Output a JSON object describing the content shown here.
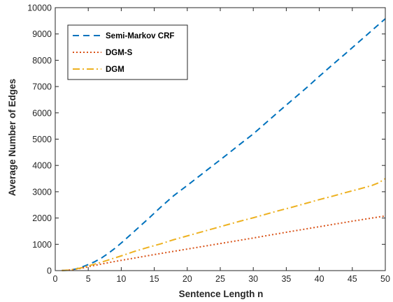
{
  "chart_data": {
    "type": "line",
    "title": "",
    "xlabel": "Sentence Length n",
    "ylabel": "Average Number of Edges",
    "xlim": [
      0,
      50
    ],
    "ylim": [
      0,
      10000
    ],
    "xticks": [
      0,
      5,
      10,
      15,
      20,
      25,
      30,
      35,
      40,
      45,
      50
    ],
    "yticks": [
      0,
      1000,
      2000,
      3000,
      4000,
      5000,
      6000,
      7000,
      8000,
      9000,
      10000
    ],
    "grid": false,
    "legend_position": "top-left",
    "series": [
      {
        "name": "Semi-Markov CRF",
        "color": "#0072BD",
        "dash": "dashed",
        "x": [
          1,
          2,
          3,
          4,
          5,
          6,
          7,
          8,
          9,
          10,
          12,
          14,
          16,
          18,
          20,
          22,
          24,
          26,
          28,
          30,
          32,
          34,
          36,
          38,
          40,
          42,
          44,
          46,
          48,
          50
        ],
        "y": [
          3,
          15,
          55,
          130,
          230,
          340,
          480,
          650,
          840,
          1050,
          1500,
          1950,
          2420,
          2860,
          3240,
          3630,
          4020,
          4410,
          4810,
          5200,
          5640,
          6080,
          6510,
          6940,
          7390,
          7830,
          8260,
          8700,
          9140,
          9580
        ]
      },
      {
        "name": "DGM-S",
        "color": "#D95319",
        "dash": "dotted",
        "x": [
          1,
          2,
          3,
          4,
          5,
          6,
          8,
          10,
          15,
          20,
          25,
          30,
          35,
          40,
          45,
          50
        ],
        "y": [
          3,
          20,
          50,
          90,
          150,
          200,
          300,
          390,
          610,
          820,
          1030,
          1240,
          1460,
          1670,
          1880,
          2080
        ]
      },
      {
        "name": "DGM",
        "color": "#EDB120",
        "dash": "dashdot",
        "x": [
          1,
          2,
          3,
          4,
          5,
          6,
          7,
          8,
          10,
          12,
          14,
          16,
          18,
          20,
          22,
          24,
          26,
          28,
          30,
          32,
          34,
          36,
          38,
          40,
          42,
          44,
          46,
          48,
          49,
          50
        ],
        "y": [
          3,
          20,
          55,
          110,
          180,
          250,
          320,
          400,
          560,
          730,
          880,
          1020,
          1180,
          1320,
          1460,
          1600,
          1740,
          1880,
          2010,
          2150,
          2290,
          2420,
          2560,
          2700,
          2830,
          2970,
          3100,
          3240,
          3340,
          3500
        ]
      }
    ]
  }
}
